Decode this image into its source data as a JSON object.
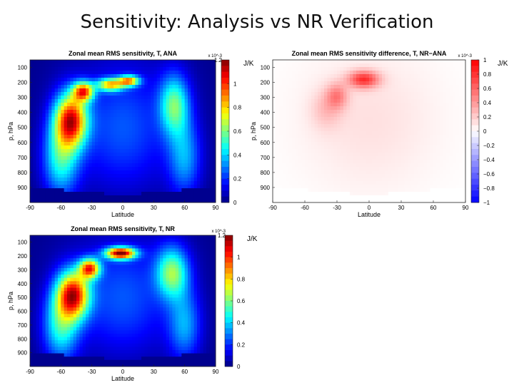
{
  "slide": {
    "title": "Sensitivity: Analysis vs NR Verification"
  },
  "chart_data": [
    {
      "id": "ana",
      "type": "heatmap",
      "title": "Zonal mean RMS sensitivity, T, ANA",
      "xlabel": "Latitude",
      "ylabel": "p, hPa",
      "xlim": [
        -90,
        90
      ],
      "ylim": [
        1000,
        50
      ],
      "xticks": [
        "-90",
        "-60",
        "-30",
        "0",
        "30",
        "60",
        "90"
      ],
      "yticks": [
        "100",
        "200",
        "300",
        "400",
        "500",
        "600",
        "700",
        "800",
        "900"
      ],
      "colorbar": {
        "colormap": "jet",
        "ticks": [
          "0",
          "0.2",
          "0.4",
          "0.6",
          "0.8",
          "1"
        ],
        "range": [
          0,
          1.2
        ],
        "scale_label": "x 10^-3",
        "top_tick": "1.2",
        "unit": "J/K"
      },
      "blobs": [
        {
          "lat": -50,
          "p": 450,
          "slat": 11,
          "sp": 125,
          "v": 0.95
        },
        {
          "lat": -38,
          "p": 260,
          "slat": 7,
          "sp": 45,
          "v": 0.8
        },
        {
          "lat": -12,
          "p": 215,
          "slat": 9,
          "sp": 30,
          "v": 0.7
        },
        {
          "lat": 6,
          "p": 190,
          "slat": 7,
          "sp": 25,
          "v": 0.75
        },
        {
          "lat": 50,
          "p": 350,
          "slat": 10,
          "sp": 140,
          "v": 0.5
        },
        {
          "lat": -60,
          "p": 700,
          "slat": 12,
          "sp": 180,
          "v": 0.45
        },
        {
          "lat": 60,
          "p": 700,
          "slat": 11,
          "sp": 180,
          "v": 0.3
        },
        {
          "lat": 0,
          "p": 500,
          "slat": 30,
          "sp": 280,
          "v": 0.2
        }
      ]
    },
    {
      "id": "diff",
      "type": "heatmap",
      "title": "Zonal mean RMS sensitivity difference, T, NR−ANA",
      "xlabel": "Latitude",
      "ylabel": "p, hPa",
      "xlim": [
        -90,
        90
      ],
      "ylim": [
        1000,
        50
      ],
      "xticks": [
        "-90",
        "-60",
        "-30",
        "0",
        "30",
        "60",
        "90"
      ],
      "yticks": [
        "100",
        "200",
        "300",
        "400",
        "500",
        "600",
        "700",
        "800",
        "900"
      ],
      "colorbar": {
        "colormap": "bwr",
        "ticks": [
          "1",
          "0.8",
          "0.6",
          "0.4",
          "0.2",
          "0",
          "−0.2",
          "−0.4",
          "−0.6",
          "−0.8",
          "−1"
        ],
        "range": [
          -1,
          1
        ],
        "scale_label": "x 10^-3",
        "unit": "J/K"
      },
      "blobs": [
        {
          "lat": -5,
          "p": 180,
          "slat": 10,
          "sp": 40,
          "v": 0.75
        },
        {
          "lat": -30,
          "p": 290,
          "slat": 7,
          "sp": 60,
          "v": 0.4
        },
        {
          "lat": -40,
          "p": 380,
          "slat": 10,
          "sp": 90,
          "v": 0.2
        },
        {
          "lat": 0,
          "p": 450,
          "slat": 45,
          "sp": 330,
          "v": 0.12
        }
      ]
    },
    {
      "id": "nr",
      "type": "heatmap",
      "title": "Zonal mean RMS sensitivity, T, NR",
      "xlabel": "Latitude",
      "ylabel": "p, hPa",
      "xlim": [
        -90,
        90
      ],
      "ylim": [
        1000,
        50
      ],
      "xticks": [
        "-90",
        "-60",
        "-30",
        "0",
        "30",
        "60",
        "90"
      ],
      "yticks": [
        "100",
        "200",
        "300",
        "400",
        "500",
        "600",
        "700",
        "800",
        "900"
      ],
      "colorbar": {
        "colormap": "jet",
        "ticks": [
          "0",
          "0.2",
          "0.4",
          "0.6",
          "0.8",
          "1"
        ],
        "range": [
          0,
          1.2
        ],
        "scale_label": "x 10^-3",
        "top_tick": "1.2",
        "unit": "J/K"
      },
      "blobs": [
        {
          "lat": -48,
          "p": 480,
          "slat": 11,
          "sp": 120,
          "v": 0.95
        },
        {
          "lat": -32,
          "p": 290,
          "slat": 7,
          "sp": 50,
          "v": 0.85
        },
        {
          "lat": -2,
          "p": 180,
          "slat": 10,
          "sp": 30,
          "v": 1.1
        },
        {
          "lat": 48,
          "p": 320,
          "slat": 11,
          "sp": 130,
          "v": 0.55
        },
        {
          "lat": -60,
          "p": 700,
          "slat": 12,
          "sp": 180,
          "v": 0.45
        },
        {
          "lat": 60,
          "p": 700,
          "slat": 11,
          "sp": 180,
          "v": 0.3
        },
        {
          "lat": 0,
          "p": 500,
          "slat": 30,
          "sp": 280,
          "v": 0.2
        }
      ]
    }
  ]
}
